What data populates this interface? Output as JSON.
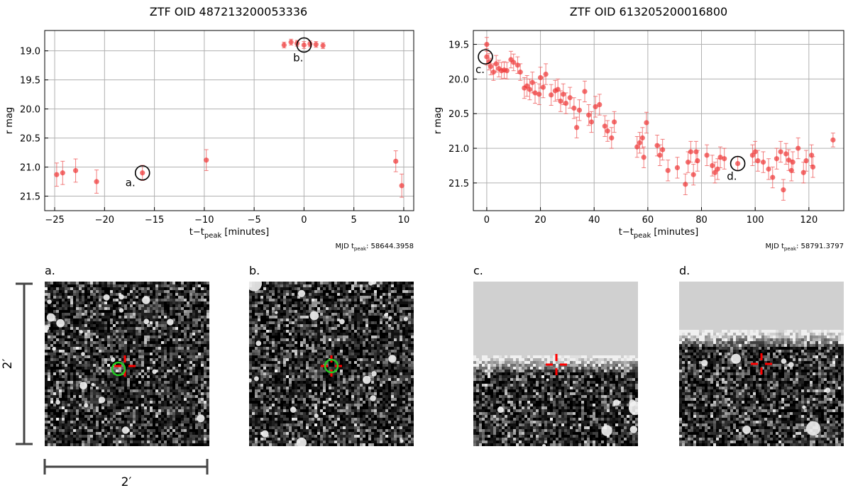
{
  "colors": {
    "points": "#ee3333",
    "errorbars": "#ee5555",
    "grid": "#b0b0b0",
    "marker_circle": "#000000",
    "crosshair": "#ff0000",
    "green_circle": "#22cc22",
    "scalebar": "#444444"
  },
  "chart_data": [
    {
      "type": "scatter",
      "title": "ZTF OID 487213200053336",
      "xlabel": "t−t",
      "xlabel_sub": "peak",
      "xlabel_suffix": " [minutes]",
      "ylabel": "r mag",
      "y_inverted": true,
      "xlim": [
        -26,
        11
      ],
      "ylim": [
        21.75,
        18.65
      ],
      "xticks": [
        -25,
        -20,
        -15,
        -10,
        -5,
        0,
        5,
        10
      ],
      "yticks": [
        19.0,
        19.5,
        20.0,
        20.5,
        21.0,
        21.5
      ],
      "ytick_labels": [
        "19.0",
        "19.5",
        "20.0",
        "20.5",
        "21.0",
        "21.5"
      ],
      "grid": true,
      "mjd_prefix": "MJD t",
      "mjd_sub": "peak",
      "mjd_value": ": 58644.3958",
      "points": [
        {
          "x": -24.8,
          "y": 21.13,
          "err": 0.2
        },
        {
          "x": -24.2,
          "y": 21.1,
          "err": 0.2
        },
        {
          "x": -22.9,
          "y": 21.06,
          "err": 0.2
        },
        {
          "x": -20.8,
          "y": 21.25,
          "err": 0.2
        },
        {
          "x": -16.2,
          "y": 21.1,
          "err": 0.13
        },
        {
          "x": -9.8,
          "y": 20.88,
          "err": 0.18
        },
        {
          "x": -2.0,
          "y": 18.9,
          "err": 0.05
        },
        {
          "x": -1.3,
          "y": 18.85,
          "err": 0.05
        },
        {
          "x": -0.7,
          "y": 18.87,
          "err": 0.05
        },
        {
          "x": 0.0,
          "y": 18.9,
          "err": 0.06
        },
        {
          "x": 0.6,
          "y": 18.88,
          "err": 0.05
        },
        {
          "x": 1.2,
          "y": 18.89,
          "err": 0.05
        },
        {
          "x": 1.9,
          "y": 18.91,
          "err": 0.05
        },
        {
          "x": 9.2,
          "y": 20.9,
          "err": 0.18
        },
        {
          "x": 9.8,
          "y": 21.32,
          "err": 0.2
        }
      ],
      "markers": [
        {
          "label": "a.",
          "x": -16.2,
          "y": 21.1,
          "label_pos": "left"
        },
        {
          "label": "b.",
          "x": 0.0,
          "y": 18.9,
          "label_pos": "below-left"
        }
      ]
    },
    {
      "type": "scatter",
      "title": "ZTF OID 613205200016800",
      "xlabel": "t−t",
      "xlabel_sub": "peak",
      "xlabel_suffix": " [minutes]",
      "ylabel": "r mag",
      "y_inverted": true,
      "xlim": [
        -5,
        133
      ],
      "ylim": [
        21.9,
        19.3
      ],
      "xticks": [
        0,
        20,
        40,
        60,
        80,
        100,
        120
      ],
      "yticks": [
        19.5,
        20.0,
        20.5,
        21.0,
        21.5
      ],
      "ytick_labels": [
        "19.5",
        "20.0",
        "20.5",
        "21.0",
        "21.5"
      ],
      "grid": true,
      "mjd_prefix": "MJD t",
      "mjd_sub": "peak",
      "mjd_value": ": 58791.3797",
      "points": [
        {
          "x": 0.0,
          "y": 19.5,
          "err": 0.1
        },
        {
          "x": 0.0,
          "y": 19.68,
          "err": 0.12
        },
        {
          "x": 0.8,
          "y": 19.75,
          "err": 0.12
        },
        {
          "x": 1.5,
          "y": 19.82,
          "err": 0.12
        },
        {
          "x": 2.5,
          "y": 19.9,
          "err": 0.12
        },
        {
          "x": 3.5,
          "y": 19.78,
          "err": 0.12
        },
        {
          "x": 4.5,
          "y": 19.85,
          "err": 0.12
        },
        {
          "x": 5.5,
          "y": 19.88,
          "err": 0.12
        },
        {
          "x": 6.5,
          "y": 19.87,
          "err": 0.12
        },
        {
          "x": 7.5,
          "y": 19.88,
          "err": 0.12
        },
        {
          "x": 9.0,
          "y": 19.72,
          "err": 0.12
        },
        {
          "x": 10.0,
          "y": 19.76,
          "err": 0.12
        },
        {
          "x": 11.5,
          "y": 19.8,
          "err": 0.12
        },
        {
          "x": 12.5,
          "y": 19.9,
          "err": 0.12
        },
        {
          "x": 14.0,
          "y": 20.13,
          "err": 0.15
        },
        {
          "x": 15.0,
          "y": 20.1,
          "err": 0.15
        },
        {
          "x": 16.0,
          "y": 20.15,
          "err": 0.15
        },
        {
          "x": 17.0,
          "y": 20.05,
          "err": 0.15
        },
        {
          "x": 18.0,
          "y": 20.2,
          "err": 0.15
        },
        {
          "x": 19.5,
          "y": 20.22,
          "err": 0.15
        },
        {
          "x": 20.0,
          "y": 19.98,
          "err": 0.15
        },
        {
          "x": 21.0,
          "y": 20.12,
          "err": 0.15
        },
        {
          "x": 22.0,
          "y": 19.93,
          "err": 0.15
        },
        {
          "x": 24.0,
          "y": 20.23,
          "err": 0.15
        },
        {
          "x": 25.5,
          "y": 20.17,
          "err": 0.15
        },
        {
          "x": 26.5,
          "y": 20.15,
          "err": 0.15
        },
        {
          "x": 27.5,
          "y": 20.32,
          "err": 0.15
        },
        {
          "x": 28.5,
          "y": 20.22,
          "err": 0.15
        },
        {
          "x": 29.5,
          "y": 20.35,
          "err": 0.15
        },
        {
          "x": 31.0,
          "y": 20.27,
          "err": 0.15
        },
        {
          "x": 32.5,
          "y": 20.42,
          "err": 0.15
        },
        {
          "x": 33.5,
          "y": 20.7,
          "err": 0.15
        },
        {
          "x": 34.5,
          "y": 20.45,
          "err": 0.15
        },
        {
          "x": 36.5,
          "y": 20.18,
          "err": 0.15
        },
        {
          "x": 38.0,
          "y": 20.52,
          "err": 0.15
        },
        {
          "x": 39.0,
          "y": 20.62,
          "err": 0.15
        },
        {
          "x": 40.5,
          "y": 20.4,
          "err": 0.15
        },
        {
          "x": 42.0,
          "y": 20.37,
          "err": 0.15
        },
        {
          "x": 44.0,
          "y": 20.68,
          "err": 0.15
        },
        {
          "x": 45.0,
          "y": 20.75,
          "err": 0.15
        },
        {
          "x": 46.5,
          "y": 20.85,
          "err": 0.15
        },
        {
          "x": 47.5,
          "y": 20.62,
          "err": 0.15
        },
        {
          "x": 56.0,
          "y": 20.98,
          "err": 0.15
        },
        {
          "x": 57.0,
          "y": 20.92,
          "err": 0.15
        },
        {
          "x": 58.0,
          "y": 20.85,
          "err": 0.15
        },
        {
          "x": 58.5,
          "y": 21.13,
          "err": 0.15
        },
        {
          "x": 59.5,
          "y": 20.63,
          "err": 0.15
        },
        {
          "x": 63.5,
          "y": 20.96,
          "err": 0.15
        },
        {
          "x": 64.5,
          "y": 21.1,
          "err": 0.15
        },
        {
          "x": 65.5,
          "y": 21.02,
          "err": 0.15
        },
        {
          "x": 67.5,
          "y": 21.32,
          "err": 0.15
        },
        {
          "x": 71.0,
          "y": 21.28,
          "err": 0.15
        },
        {
          "x": 74.0,
          "y": 21.52,
          "err": 0.15
        },
        {
          "x": 75.0,
          "y": 21.2,
          "err": 0.15
        },
        {
          "x": 76.0,
          "y": 21.05,
          "err": 0.15
        },
        {
          "x": 77.0,
          "y": 21.38,
          "err": 0.15
        },
        {
          "x": 78.0,
          "y": 21.05,
          "err": 0.15
        },
        {
          "x": 78.5,
          "y": 21.18,
          "err": 0.15
        },
        {
          "x": 82.0,
          "y": 21.1,
          "err": 0.15
        },
        {
          "x": 84.0,
          "y": 21.25,
          "err": 0.15
        },
        {
          "x": 85.0,
          "y": 21.35,
          "err": 0.15
        },
        {
          "x": 86.0,
          "y": 21.3,
          "err": 0.15
        },
        {
          "x": 87.0,
          "y": 21.13,
          "err": 0.15
        },
        {
          "x": 88.5,
          "y": 21.15,
          "err": 0.15
        },
        {
          "x": 93.5,
          "y": 21.22,
          "err": 0.1
        },
        {
          "x": 99.0,
          "y": 21.1,
          "err": 0.15
        },
        {
          "x": 100.0,
          "y": 21.05,
          "err": 0.15
        },
        {
          "x": 101.0,
          "y": 21.18,
          "err": 0.15
        },
        {
          "x": 103.0,
          "y": 21.2,
          "err": 0.15
        },
        {
          "x": 105.0,
          "y": 21.3,
          "err": 0.15
        },
        {
          "x": 106.5,
          "y": 21.42,
          "err": 0.15
        },
        {
          "x": 108.0,
          "y": 21.15,
          "err": 0.15
        },
        {
          "x": 109.5,
          "y": 21.05,
          "err": 0.15
        },
        {
          "x": 110.5,
          "y": 21.6,
          "err": 0.15
        },
        {
          "x": 111.5,
          "y": 21.08,
          "err": 0.15
        },
        {
          "x": 112.5,
          "y": 21.17,
          "err": 0.15
        },
        {
          "x": 113.5,
          "y": 21.32,
          "err": 0.15
        },
        {
          "x": 114.0,
          "y": 21.2,
          "err": 0.15
        },
        {
          "x": 116.0,
          "y": 21.0,
          "err": 0.15
        },
        {
          "x": 118.0,
          "y": 21.35,
          "err": 0.15
        },
        {
          "x": 119.0,
          "y": 21.18,
          "err": 0.15
        },
        {
          "x": 121.0,
          "y": 21.1,
          "err": 0.15
        },
        {
          "x": 121.5,
          "y": 21.27,
          "err": 0.15
        },
        {
          "x": 129.0,
          "y": 20.88,
          "err": 0.1
        }
      ],
      "markers": [
        {
          "label": "c.",
          "x": -0.5,
          "y": 19.68,
          "label_pos": "below-left"
        },
        {
          "label": "d.",
          "x": 93.5,
          "y": 21.22,
          "label_pos": "below-left"
        }
      ]
    }
  ],
  "cutouts": [
    {
      "label": "a.",
      "style": "field",
      "green_circle": true,
      "green_offset": "left"
    },
    {
      "label": "b.",
      "style": "field",
      "green_circle": true,
      "green_offset": "center"
    },
    {
      "label": "c.",
      "style": "masked",
      "mask_fraction": 0.45
    },
    {
      "label": "d.",
      "style": "masked",
      "mask_fraction": 0.3
    }
  ],
  "scalebar": {
    "vertical_label": "2′",
    "horizontal_label": "2′"
  }
}
